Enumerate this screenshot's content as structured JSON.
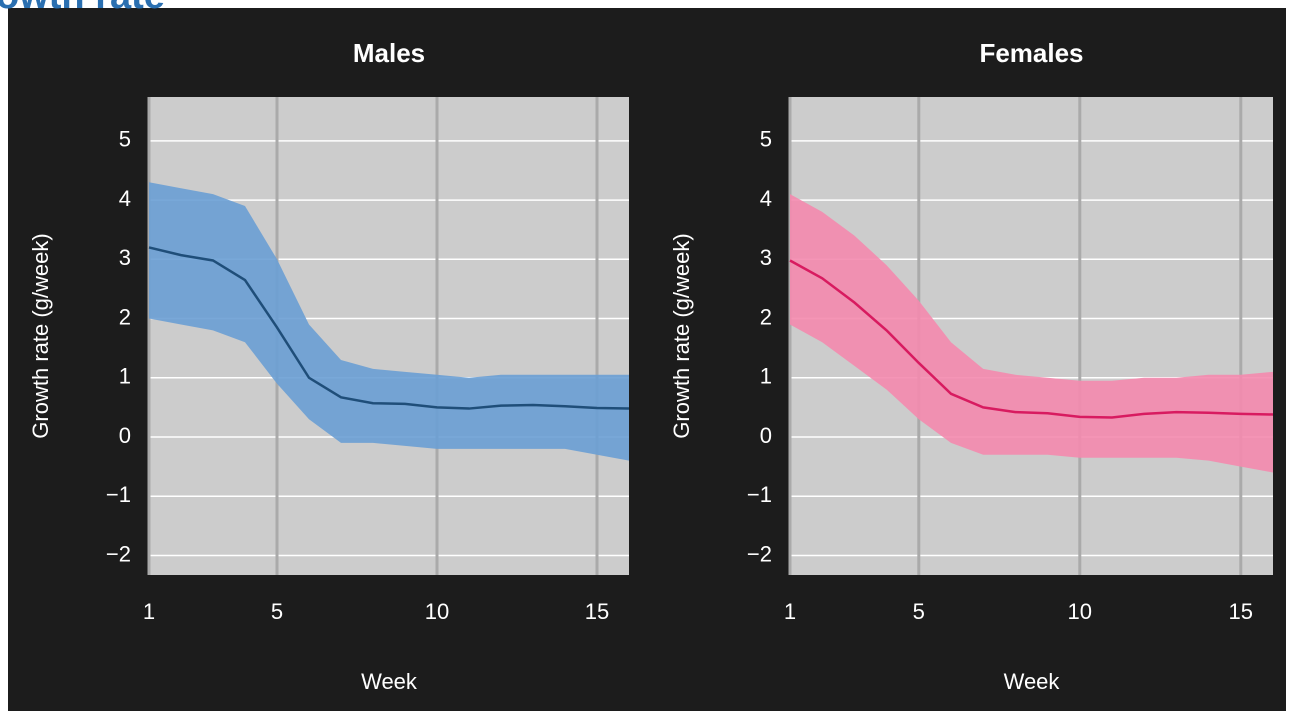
{
  "header": {
    "title": "owth rate"
  },
  "chart_data": [
    {
      "type": "line",
      "title": "Males",
      "x_label": "Week",
      "y_label": "Growth rate (g/week)",
      "x": [
        1,
        2,
        3,
        4,
        5,
        6,
        7,
        8,
        9,
        10,
        11,
        12,
        13,
        14,
        15,
        16
      ],
      "xlim": [
        1,
        16
      ],
      "xticks": [
        1,
        5,
        10,
        15
      ],
      "ylim": [
        -2.33,
        5.74
      ],
      "yticks": [
        {
          "value": -2,
          "label": "−2"
        },
        {
          "value": -1,
          "label": "−1"
        },
        0,
        1,
        2,
        3,
        4,
        5
      ],
      "grid": true,
      "background": "#cccccc",
      "band": {
        "color": "#6a9fd4",
        "upper": [
          4.3,
          4.2,
          4.1,
          3.9,
          3.0,
          1.9,
          1.3,
          1.15,
          1.1,
          1.05,
          1.0,
          1.05,
          1.05,
          1.05,
          1.05,
          1.05
        ],
        "lower": [
          2.0,
          1.9,
          1.8,
          1.6,
          0.9,
          0.3,
          -0.1,
          -0.1,
          -0.15,
          -0.2,
          -0.2,
          -0.2,
          -0.2,
          -0.2,
          -0.3,
          -0.4
        ]
      },
      "series": [
        {
          "color": "#1f4e79",
          "values": [
            3.2,
            3.07,
            2.98,
            2.65,
            1.85,
            1.0,
            0.67,
            0.57,
            0.56,
            0.5,
            0.48,
            0.53,
            0.54,
            0.52,
            0.49,
            0.48
          ]
        }
      ]
    },
    {
      "type": "line",
      "title": "Females",
      "x_label": "Week",
      "y_label": "Growth rate (g/week)",
      "x": [
        1,
        2,
        3,
        4,
        5,
        6,
        7,
        8,
        9,
        10,
        11,
        12,
        13,
        14,
        15,
        16
      ],
      "xlim": [
        1,
        16
      ],
      "xticks": [
        1,
        5,
        10,
        15
      ],
      "ylim": [
        -2.33,
        5.74
      ],
      "yticks": [
        {
          "value": -2,
          "label": "−2"
        },
        {
          "value": -1,
          "label": "−1"
        },
        0,
        1,
        2,
        3,
        4,
        5
      ],
      "grid": true,
      "background": "#cccccc",
      "band": {
        "color": "#f48aae",
        "upper": [
          4.1,
          3.8,
          3.4,
          2.9,
          2.3,
          1.6,
          1.15,
          1.05,
          1.0,
          0.95,
          0.95,
          1.0,
          1.0,
          1.05,
          1.05,
          1.1
        ],
        "lower": [
          1.9,
          1.6,
          1.2,
          0.8,
          0.3,
          -0.1,
          -0.3,
          -0.3,
          -0.3,
          -0.35,
          -0.35,
          -0.35,
          -0.35,
          -0.4,
          -0.5,
          -0.6
        ]
      },
      "series": [
        {
          "color": "#d81b60",
          "values": [
            2.98,
            2.68,
            2.27,
            1.8,
            1.25,
            0.73,
            0.5,
            0.42,
            0.4,
            0.34,
            0.33,
            0.39,
            0.42,
            0.41,
            0.39,
            0.38
          ]
        }
      ]
    }
  ]
}
